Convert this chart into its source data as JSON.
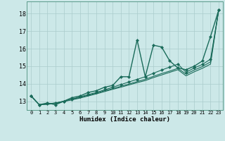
{
  "xlabel": "Humidex (Indice chaleur)",
  "bg_color": "#cce8e8",
  "grid_color": "#aacccc",
  "line_color": "#1a6b5a",
  "xlim": [
    -0.5,
    23.5
  ],
  "ylim": [
    12.5,
    18.7
  ],
  "yticks": [
    13,
    14,
    15,
    16,
    17,
    18
  ],
  "xticks": [
    0,
    1,
    2,
    3,
    4,
    5,
    6,
    7,
    8,
    9,
    10,
    11,
    12,
    13,
    14,
    15,
    16,
    17,
    18,
    19,
    20,
    21,
    22,
    23
  ],
  "series": [
    {
      "y": [
        13.3,
        12.8,
        12.9,
        12.8,
        13.0,
        13.2,
        13.3,
        13.5,
        13.6,
        13.8,
        13.9,
        14.4,
        14.4,
        16.5,
        14.4,
        16.2,
        16.1,
        15.3,
        14.9,
        14.8,
        15.0,
        15.3,
        16.7,
        18.2
      ],
      "marker": true,
      "lw": 1.0
    },
    {
      "y": [
        13.3,
        12.8,
        12.85,
        12.9,
        13.0,
        13.12,
        13.25,
        13.38,
        13.5,
        13.65,
        13.8,
        13.95,
        14.1,
        14.25,
        14.4,
        14.6,
        14.78,
        14.95,
        15.12,
        14.65,
        14.9,
        15.1,
        15.4,
        18.2
      ],
      "marker": true,
      "lw": 0.8
    },
    {
      "y": [
        13.3,
        12.8,
        12.85,
        12.9,
        13.0,
        13.1,
        13.22,
        13.34,
        13.46,
        13.6,
        13.72,
        13.85,
        13.98,
        14.12,
        14.25,
        14.42,
        14.58,
        14.72,
        14.88,
        14.55,
        14.78,
        14.98,
        15.25,
        18.2
      ],
      "marker": false,
      "lw": 0.8
    },
    {
      "y": [
        13.3,
        12.8,
        12.82,
        12.88,
        12.98,
        13.08,
        13.18,
        13.3,
        13.42,
        13.55,
        13.68,
        13.8,
        13.93,
        14.06,
        14.18,
        14.35,
        14.5,
        14.65,
        14.8,
        14.45,
        14.68,
        14.88,
        15.12,
        18.2
      ],
      "marker": false,
      "lw": 0.8
    }
  ]
}
